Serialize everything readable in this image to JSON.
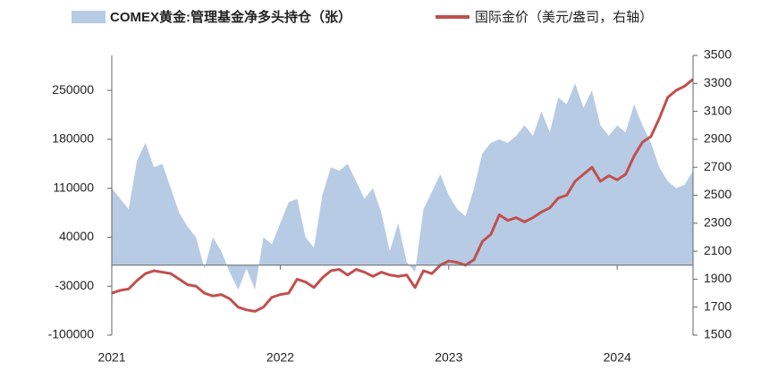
{
  "chart_data": {
    "type": "area-line",
    "x": [
      2021,
      2021.05,
      2021.1,
      2021.15,
      2021.2,
      2021.25,
      2021.3,
      2021.35,
      2021.4,
      2021.45,
      2021.5,
      2021.55,
      2021.6,
      2021.65,
      2021.7,
      2021.75,
      2021.8,
      2021.85,
      2021.9,
      2021.95,
      2022,
      2022.05,
      2022.1,
      2022.15,
      2022.2,
      2022.25,
      2022.3,
      2022.35,
      2022.4,
      2022.45,
      2022.5,
      2022.55,
      2022.6,
      2022.65,
      2022.7,
      2022.75,
      2022.8,
      2022.85,
      2022.9,
      2022.95,
      2023,
      2023.05,
      2023.1,
      2023.15,
      2023.2,
      2023.25,
      2023.3,
      2023.35,
      2023.4,
      2023.45,
      2023.5,
      2023.55,
      2023.6,
      2023.65,
      2023.7,
      2023.75,
      2023.8,
      2023.85,
      2023.9,
      2023.95,
      2024,
      2024.05,
      2024.1,
      2024.15,
      2024.2,
      2024.25,
      2024.3,
      2024.35,
      2024.4,
      2024.45
    ],
    "series": [
      {
        "name": "COMEX黄金:管理基金净多头持仓（张）",
        "type": "area",
        "color": "#b7cbe4",
        "values": [
          110000,
          95000,
          80000,
          150000,
          175000,
          140000,
          145000,
          110000,
          75000,
          55000,
          40000,
          -5000,
          40000,
          20000,
          -10000,
          -35000,
          -5000,
          -35000,
          40000,
          30000,
          60000,
          90000,
          95000,
          40000,
          25000,
          100000,
          140000,
          135000,
          145000,
          120000,
          95000,
          110000,
          75000,
          20000,
          60000,
          5000,
          -10000,
          80000,
          105000,
          130000,
          100000,
          80000,
          70000,
          110000,
          160000,
          175000,
          180000,
          175000,
          185000,
          200000,
          185000,
          220000,
          190000,
          240000,
          230000,
          260000,
          225000,
          250000,
          200000,
          185000,
          200000,
          190000,
          230000,
          200000,
          175000,
          140000,
          120000,
          110000,
          115000,
          135000
        ]
      },
      {
        "name": "国际金价（美元/盎司，右轴）",
        "type": "line",
        "axis": "y2",
        "color": "#c0504d",
        "values": [
          1800,
          1820,
          1830,
          1890,
          1940,
          1960,
          1950,
          1940,
          1900,
          1860,
          1850,
          1800,
          1780,
          1790,
          1760,
          1700,
          1680,
          1670,
          1700,
          1770,
          1790,
          1800,
          1900,
          1880,
          1840,
          1910,
          1960,
          1970,
          1930,
          1970,
          1950,
          1920,
          1950,
          1930,
          1920,
          1930,
          1840,
          1960,
          1940,
          2000,
          2030,
          2020,
          2000,
          2040,
          2170,
          2220,
          2360,
          2320,
          2340,
          2310,
          2340,
          2380,
          2410,
          2480,
          2500,
          2600,
          2650,
          2700,
          2600,
          2640,
          2610,
          2650,
          2780,
          2880,
          2920,
          3050,
          3200,
          3250,
          3280,
          3330
        ]
      }
    ],
    "xlim": [
      2021,
      2024.45
    ],
    "xticks": [
      2021,
      2022,
      2023,
      2024
    ],
    "ylim": [
      -100000,
      300000
    ],
    "yticks": [
      -100000,
      -30000,
      40000,
      110000,
      180000,
      250000
    ],
    "y2lim": [
      1500,
      3500
    ],
    "y2ticks": [
      1500,
      1700,
      1900,
      2100,
      2300,
      2500,
      2700,
      2900,
      3100,
      3300,
      3500
    ]
  }
}
